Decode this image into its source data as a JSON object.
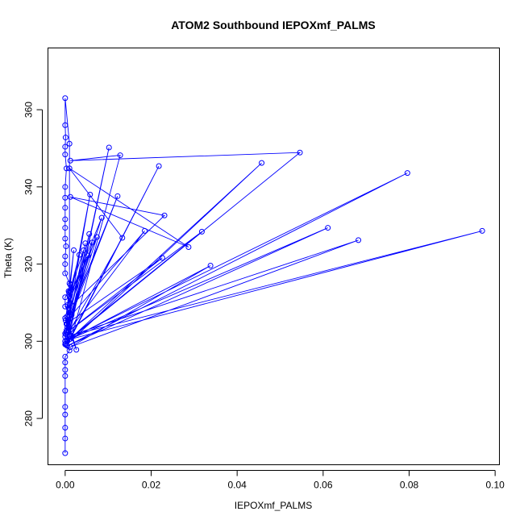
{
  "chart_data": {
    "type": "line",
    "title": "ATOM2 Southbound IEPOXmf_PALMS",
    "xlabel": "IEPOXmf_PALMS",
    "ylabel": "Theta (K)",
    "xlim": [
      -0.004,
      0.101
    ],
    "ylim": [
      268,
      376
    ],
    "xticks": [
      0.0,
      0.02,
      0.04,
      0.06,
      0.08,
      0.1
    ],
    "xtick_labels": [
      "0.00",
      "0.02",
      "0.04",
      "0.06",
      "0.08",
      "0.10"
    ],
    "yticks": [
      280,
      300,
      320,
      340,
      360
    ],
    "ytick_labels": [
      "280",
      "300",
      "320",
      "340",
      "360"
    ],
    "grid": false,
    "color": "#0000ff",
    "series": [
      {
        "points": [
          [
            0.0,
            271
          ],
          [
            0.0,
            274.8
          ],
          [
            0.0,
            277.6
          ],
          [
            0.0,
            281
          ],
          [
            0.0,
            283
          ],
          [
            0.0,
            287.2
          ],
          [
            0.0,
            291
          ],
          [
            0.0,
            292.6
          ],
          [
            0.0,
            294.5
          ],
          [
            0.0,
            296
          ],
          [
            0.001,
            297.6
          ],
          [
            0.0,
            299.2
          ],
          [
            0.0,
            300
          ],
          [
            0.0,
            301.2
          ],
          [
            0.0,
            302
          ],
          [
            0.0005,
            303.6
          ],
          [
            0.0,
            306
          ],
          [
            0.001,
            307.4
          ],
          [
            0.0,
            309
          ],
          [
            0.0,
            311.4
          ],
          [
            0.0008,
            313
          ],
          [
            0.001,
            315
          ],
          [
            0.0,
            317.6
          ],
          [
            0.0,
            320
          ],
          [
            0.0,
            322
          ],
          [
            0.0002,
            324.6
          ],
          [
            0.0,
            326.6
          ],
          [
            0.0,
            329.4
          ],
          [
            0.0,
            331.6
          ],
          [
            0.0,
            334.6
          ],
          [
            0.0,
            337.2
          ],
          [
            0.0,
            340
          ],
          [
            0.0003,
            344.8
          ],
          [
            0.0,
            348.4
          ],
          [
            0.0,
            350.4
          ],
          [
            0.0001,
            352.8
          ],
          [
            0.0,
            356
          ],
          [
            0.0,
            363
          ],
          [
            0.001,
            351.2
          ],
          [
            0.001,
            301.5
          ],
          [
            0.0102,
            350.2
          ],
          [
            0.0005,
            300
          ],
          [
            0.0546,
            348.9
          ],
          [
            0.0012,
            346.8
          ],
          [
            0.0128,
            348.2
          ],
          [
            0.0015,
            301
          ],
          [
            0.0457,
            346.2
          ],
          [
            0.0003,
            299
          ],
          [
            0.0218,
            345.4
          ],
          [
            0.0012,
            300.6
          ],
          [
            0.0611,
            329.4
          ],
          [
            0.0005,
            298.8
          ],
          [
            0.0796,
            343.6
          ],
          [
            0.0004,
            300.3
          ],
          [
            0.097,
            328.6
          ],
          [
            0.0012,
            301.5
          ],
          [
            0.0682,
            326.2
          ],
          [
            0.0012,
            298.5
          ],
          [
            0.0338,
            319.6
          ],
          [
            0.0005,
            300.2
          ],
          [
            0.0318,
            328.4
          ],
          [
            0.0008,
            302.6
          ],
          [
            0.0185,
            328.6
          ],
          [
            0.0015,
            306.8
          ],
          [
            0.0122,
            337.6
          ],
          [
            0.0003,
            304.5
          ],
          [
            0.0226,
            321.6
          ],
          [
            0.0012,
            303
          ],
          [
            0.0133,
            326.8
          ],
          [
            0.001,
            344.8
          ],
          [
            0.0287,
            324.4
          ],
          [
            0.0012,
            337.4
          ],
          [
            0.0231,
            332.6
          ],
          [
            0.0008,
            308.6
          ],
          [
            0.0058,
            338
          ],
          [
            0.0005,
            304.4
          ],
          [
            0.0085,
            332
          ],
          [
            0.001,
            311.6
          ],
          [
            0.0074,
            327
          ],
          [
            0.0002,
            301.8
          ],
          [
            0.0063,
            325.6
          ],
          [
            0.0001,
            299.4
          ],
          [
            0.0056,
            327.8
          ],
          [
            0.0008,
            305.6
          ],
          [
            0.0047,
            325.4
          ],
          [
            0.0003,
            302.8
          ],
          [
            0.0043,
            323.6
          ],
          [
            0.0011,
            313
          ],
          [
            0.0033,
            322.4
          ],
          [
            0.0006,
            309.4
          ],
          [
            0.0053,
            322.2
          ],
          [
            0.0004,
            306.4
          ],
          [
            0.0026,
            297.8
          ],
          [
            0.0001,
            305.4
          ],
          [
            0.002,
            323.6
          ],
          [
            0.0012,
            314.6
          ],
          [
            0.0013,
            307
          ],
          [
            0.0003,
            302.4
          ],
          [
            0.0009,
            312.6
          ],
          [
            0.0,
            300
          ]
        ]
      }
    ]
  }
}
